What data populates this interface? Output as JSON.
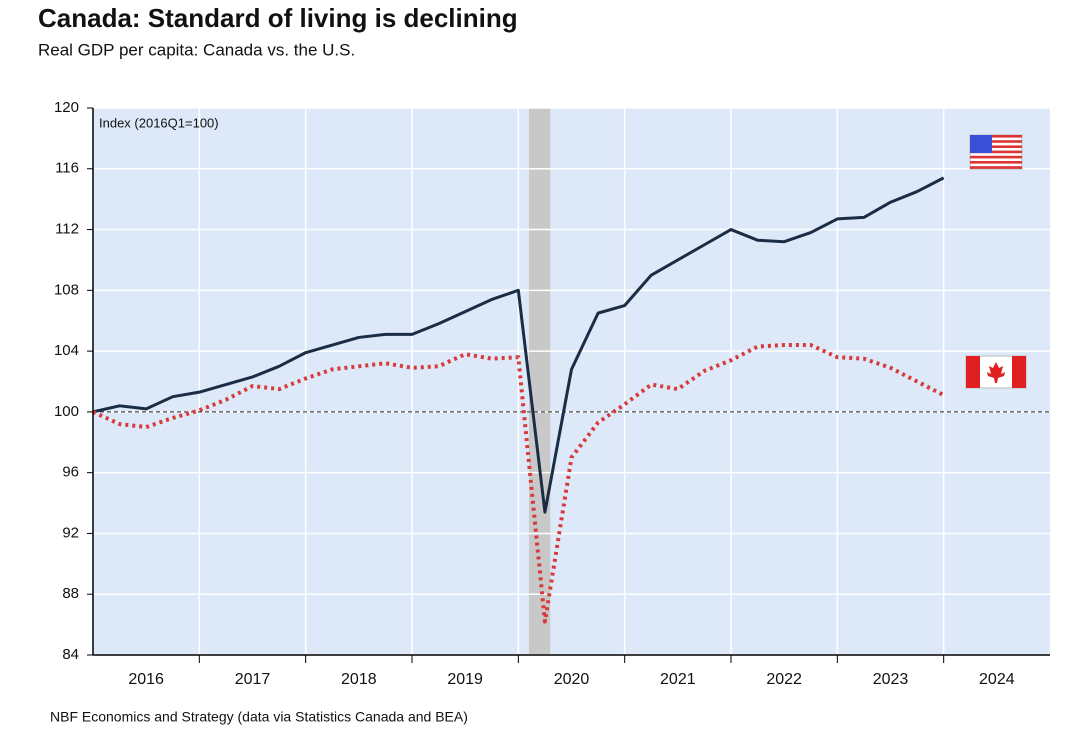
{
  "chart_data": {
    "type": "line",
    "title": "Canada: Standard of living is declining",
    "subtitle": "Real GDP per capita: Canada vs. the U.S.",
    "annotation": "Index (2016Q1=100)",
    "source": "NBF Economics and Strategy (data via Statistics Canada and BEA)",
    "x": [
      2016,
      2016.25,
      2016.5,
      2016.75,
      2017,
      2017.25,
      2017.5,
      2017.75,
      2018,
      2018.25,
      2018.5,
      2018.75,
      2019,
      2019.25,
      2019.5,
      2019.75,
      2020,
      2020.25,
      2020.5,
      2020.75,
      2021,
      2021.25,
      2021.5,
      2021.75,
      2022,
      2022.25,
      2022.5,
      2022.75,
      2023,
      2023.25,
      2023.5,
      2023.75,
      2024
    ],
    "series": [
      {
        "color": "#1b2d45",
        "style": "solid",
        "values": [
          100,
          100.4,
          100.2,
          101.0,
          101.3,
          101.8,
          102.3,
          103.0,
          103.9,
          104.4,
          104.9,
          105.1,
          105.1,
          105.8,
          106.6,
          107.4,
          108.0,
          93.4,
          102.8,
          106.5,
          107.0,
          109.0,
          110.0,
          111.0,
          112.0,
          111.3,
          111.2,
          111.8,
          112.7,
          112.8,
          113.8,
          114.5,
          115.4
        ]
      },
      {
        "color": "#d83a3a",
        "style": "dotted",
        "values": [
          100,
          99.2,
          99.0,
          99.6,
          100.1,
          100.8,
          101.7,
          101.5,
          102.2,
          102.8,
          103.0,
          103.2,
          102.9,
          103.0,
          103.8,
          103.5,
          103.6,
          86.2,
          97.0,
          99.3,
          100.5,
          101.8,
          101.5,
          102.7,
          103.4,
          104.3,
          104.4,
          104.4,
          103.6,
          103.5,
          102.9,
          102.0,
          101.1
        ]
      }
    ],
    "recession_span": [
      2020.1,
      2020.3
    ],
    "reference_line": 100,
    "xlim": [
      2016,
      2025
    ],
    "xticks": [
      {
        "value": 2016.5,
        "label": "2016"
      },
      {
        "value": 2017.5,
        "label": "2017"
      },
      {
        "value": 2018.5,
        "label": "2018"
      },
      {
        "value": 2019.5,
        "label": "2019"
      },
      {
        "value": 2020.5,
        "label": "2020"
      },
      {
        "value": 2021.5,
        "label": "2021"
      },
      {
        "value": 2022.5,
        "label": "2022"
      },
      {
        "value": 2023.5,
        "label": "2023"
      },
      {
        "value": 2024.5,
        "label": "2024"
      }
    ],
    "x_gridlines": [
      2017,
      2018,
      2019,
      2020,
      2021,
      2022,
      2023,
      2024
    ],
    "ylim": [
      84,
      120
    ],
    "yticks": [
      84,
      88,
      92,
      96,
      100,
      104,
      108,
      112,
      116,
      120
    ],
    "grid": true
  }
}
